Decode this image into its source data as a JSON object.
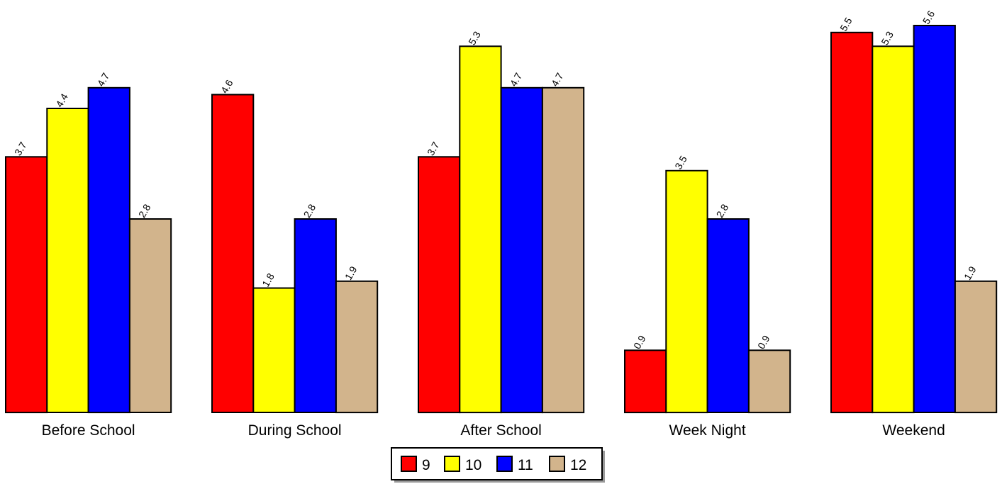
{
  "chart_data": {
    "type": "bar",
    "categories": [
      "Before School",
      "During School",
      "After School",
      "Week Night",
      "Weekend"
    ],
    "series": [
      {
        "name": "9",
        "color": "#ff0000",
        "values": [
          3.7,
          4.6,
          3.7,
          0.9,
          5.5
        ]
      },
      {
        "name": "10",
        "color": "#ffff00",
        "values": [
          4.4,
          1.8,
          5.3,
          3.5,
          5.3
        ]
      },
      {
        "name": "11",
        "color": "#0000ff",
        "values": [
          4.7,
          2.8,
          4.7,
          2.8,
          5.6
        ]
      },
      {
        "name": "12",
        "color": "#d2b48c",
        "values": [
          2.8,
          1.9,
          4.7,
          0.9,
          1.9
        ]
      }
    ],
    "data_labels": [
      [
        "3.7",
        "4.6",
        "3.7",
        "0.9",
        "5.5"
      ],
      [
        "4.4",
        "1.8",
        "5.3",
        "3.5",
        "5.3"
      ],
      [
        "4.7",
        "2.8",
        "4.7",
        "2.8",
        "5.6"
      ],
      [
        "2.8",
        "1.9",
        "4.7",
        "0.9",
        "1.9"
      ]
    ],
    "title": "",
    "xlabel": "",
    "ylabel": "",
    "ylim": [
      0,
      5.6
    ],
    "grid": false,
    "legend_position": "bottom-center"
  }
}
